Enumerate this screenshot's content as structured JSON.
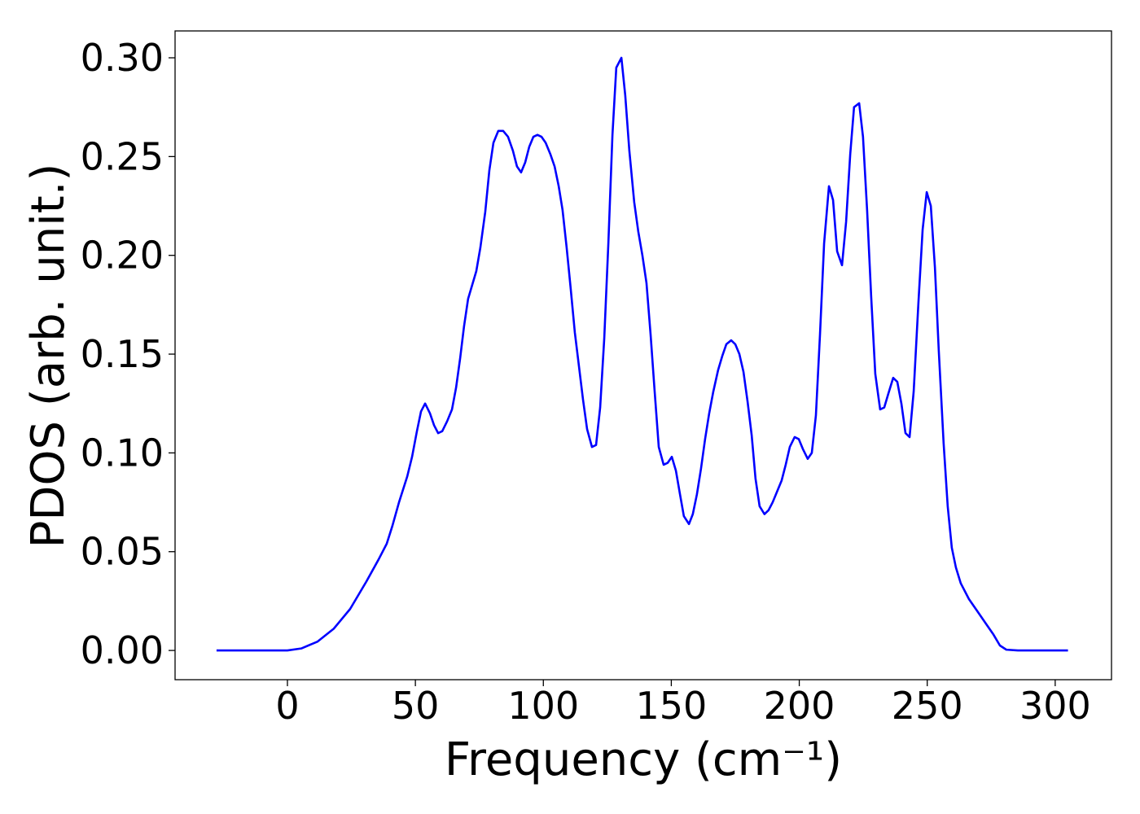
{
  "chart_data": {
    "type": "line",
    "xlabel": "Frequency (cm⁻¹)",
    "ylabel": "PDOS (arb. unit.)",
    "xlim": [
      -43.9,
      322
    ],
    "ylim": [
      -0.0148,
      0.3136
    ],
    "xticks": [
      0,
      50,
      100,
      150,
      200,
      250,
      300
    ],
    "yticks": [
      {
        "value": 0,
        "label": "0.00"
      },
      {
        "value": 0.05,
        "label": "0.05"
      },
      {
        "value": 0.1,
        "label": "0.10"
      },
      {
        "value": 0.15,
        "label": "0.15"
      },
      {
        "value": 0.2,
        "label": "0.20"
      },
      {
        "value": 0.25,
        "label": "0.25"
      },
      {
        "value": 0.3,
        "label": "0.30"
      }
    ],
    "grid": false,
    "x": [
      -27.7,
      0,
      5.4,
      11.8,
      18.1,
      24.5,
      30.9,
      35.6,
      38.8,
      41,
      43.6,
      46.8,
      48.7,
      50.6,
      52.2,
      53.8,
      55.7,
      57.3,
      58.9,
      60.5,
      62.4,
      64.3,
      65.9,
      67.5,
      69,
      70.6,
      72.2,
      73.8,
      75.4,
      77.3,
      78.9,
      80.5,
      82.4,
      84.3,
      86.2,
      88.1,
      89.7,
      91.3,
      92.9,
      94.5,
      96.1,
      97.7,
      99.3,
      100.9,
      102.8,
      104.4,
      106,
      107.5,
      109.1,
      110.7,
      112.3,
      113.9,
      115.5,
      117.1,
      119,
      120.6,
      122.2,
      123.8,
      125.4,
      127,
      128.5,
      130.5,
      132,
      133.6,
      135.5,
      137.1,
      138.7,
      140.3,
      141.9,
      143.5,
      145.1,
      147,
      148.6,
      150.2,
      151.8,
      153.4,
      154.9,
      156.9,
      158.4,
      160,
      161.6,
      163.2,
      164.8,
      166.4,
      168.3,
      169.9,
      171.5,
      173.4,
      175,
      176.6,
      178.2,
      179.8,
      181.4,
      182.9,
      184.5,
      186.4,
      188,
      189.6,
      191.2,
      193.1,
      194.7,
      196.3,
      198.2,
      199.8,
      201.4,
      203.3,
      204.9,
      206.5,
      208.1,
      209.7,
      211.6,
      213.2,
      214.8,
      216.7,
      218.3,
      219.9,
      221.4,
      223.4,
      224.9,
      226.5,
      228.1,
      229.7,
      231.6,
      233.2,
      234.8,
      236.7,
      238.3,
      239.9,
      241.5,
      243.1,
      244.7,
      246.6,
      248.2,
      249.8,
      251.4,
      253,
      254.5,
      256.4,
      258,
      259.6,
      261.2,
      263.1,
      266.3,
      269.5,
      272.7,
      275.9,
      278.4,
      280.9,
      285.4,
      305
    ],
    "series": [
      {
        "color": "#0000ff",
        "values": [
          0,
          0,
          0.001,
          0.0045,
          0.011,
          0.021,
          0.035,
          0.046,
          0.054,
          0.063,
          0.075,
          0.088,
          0.098,
          0.111,
          0.121,
          0.125,
          0.12,
          0.114,
          0.11,
          0.111,
          0.116,
          0.122,
          0.133,
          0.148,
          0.164,
          0.178,
          0.185,
          0.192,
          0.204,
          0.222,
          0.243,
          0.257,
          0.263,
          0.263,
          0.26,
          0.253,
          0.245,
          0.242,
          0.247,
          0.255,
          0.26,
          0.261,
          0.26,
          0.257,
          0.251,
          0.245,
          0.235,
          0.223,
          0.204,
          0.183,
          0.161,
          0.144,
          0.127,
          0.112,
          0.103,
          0.104,
          0.123,
          0.158,
          0.206,
          0.261,
          0.295,
          0.3,
          0.281,
          0.253,
          0.227,
          0.212,
          0.2,
          0.186,
          0.16,
          0.131,
          0.103,
          0.094,
          0.095,
          0.098,
          0.091,
          0.079,
          0.068,
          0.064,
          0.069,
          0.079,
          0.092,
          0.107,
          0.12,
          0.131,
          0.142,
          0.149,
          0.155,
          0.157,
          0.155,
          0.15,
          0.141,
          0.126,
          0.109,
          0.087,
          0.073,
          0.069,
          0.071,
          0.075,
          0.08,
          0.086,
          0.094,
          0.103,
          0.108,
          0.107,
          0.102,
          0.097,
          0.1,
          0.119,
          0.16,
          0.206,
          0.235,
          0.228,
          0.202,
          0.195,
          0.217,
          0.251,
          0.275,
          0.277,
          0.26,
          0.223,
          0.179,
          0.14,
          0.122,
          0.123,
          0.13,
          0.138,
          0.136,
          0.125,
          0.11,
          0.108,
          0.131,
          0.177,
          0.213,
          0.232,
          0.225,
          0.194,
          0.152,
          0.105,
          0.073,
          0.052,
          0.042,
          0.034,
          0.026,
          0.02,
          0.014,
          0.008,
          0.0025,
          0.0004,
          0,
          0
        ]
      }
    ]
  }
}
